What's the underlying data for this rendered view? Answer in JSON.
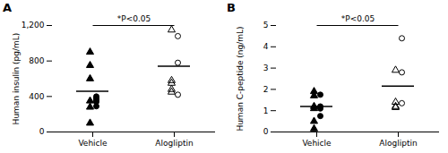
{
  "chart_data": [
    {
      "type": "scatter",
      "title": "A",
      "annotation": "*P<0.05",
      "ylabel": "Human insulin (pg/mL)",
      "categories": [
        "Vehicle",
        "Alogliptin"
      ],
      "means": [
        460,
        740
      ],
      "ylim": [
        0,
        1200
      ],
      "yticks": [
        0,
        400,
        800,
        {
          "value": 1200,
          "label": "1,200"
        }
      ],
      "series": [
        {
          "marker": "filled_triangle",
          "color": "black",
          "x": [
            "Vehicle",
            "Vehicle",
            "Vehicle",
            "Vehicle",
            "Vehicle",
            "Vehicle"
          ],
          "values": [
            900,
            750,
            600,
            350,
            280,
            100
          ]
        },
        {
          "marker": "filled_circle",
          "color": "black",
          "x": [
            "Vehicle",
            "Vehicle",
            "Vehicle",
            "Vehicle",
            "Vehicle"
          ],
          "values": [
            400,
            380,
            360,
            340,
            290
          ]
        },
        {
          "marker": "open_triangle",
          "color": "black",
          "x": [
            "Alogliptin",
            "Alogliptin",
            "Alogliptin",
            "Alogliptin",
            "Alogliptin"
          ],
          "values": [
            1150,
            580,
            550,
            480,
            450
          ]
        },
        {
          "marker": "open_circle",
          "color": "black",
          "x": [
            "Alogliptin",
            "Alogliptin",
            "Alogliptin"
          ],
          "values": [
            1080,
            780,
            420
          ]
        }
      ]
    },
    {
      "type": "scatter",
      "title": "B",
      "annotation": "*P<0.05",
      "ylabel": "Human C-peptide (ng/mL)",
      "categories": [
        "Vehicle",
        "Alogliptin"
      ],
      "means": [
        1.2,
        2.15
      ],
      "ylim": [
        0,
        5
      ],
      "yticks": [
        0,
        1,
        2,
        3,
        4,
        5
      ],
      "series": [
        {
          "marker": "filled_triangle",
          "color": "black",
          "x": [
            "Vehicle",
            "Vehicle",
            "Vehicle",
            "Vehicle",
            "Vehicle",
            "Vehicle"
          ],
          "values": [
            1.9,
            1.7,
            1.2,
            1.1,
            0.5,
            0.15
          ]
        },
        {
          "marker": "filled_circle",
          "color": "black",
          "x": [
            "Vehicle",
            "Vehicle",
            "Vehicle",
            "Vehicle"
          ],
          "values": [
            1.75,
            1.2,
            1.1,
            0.75
          ]
        },
        {
          "marker": "open_triangle",
          "color": "black",
          "x": [
            "Alogliptin",
            "Alogliptin",
            "Alogliptin",
            "Alogliptin"
          ],
          "values": [
            2.9,
            1.4,
            1.2,
            1.15
          ]
        },
        {
          "marker": "open_circle",
          "color": "black",
          "x": [
            "Alogliptin",
            "Alogliptin",
            "Alogliptin"
          ],
          "values": [
            4.4,
            2.8,
            1.35
          ]
        }
      ]
    }
  ]
}
